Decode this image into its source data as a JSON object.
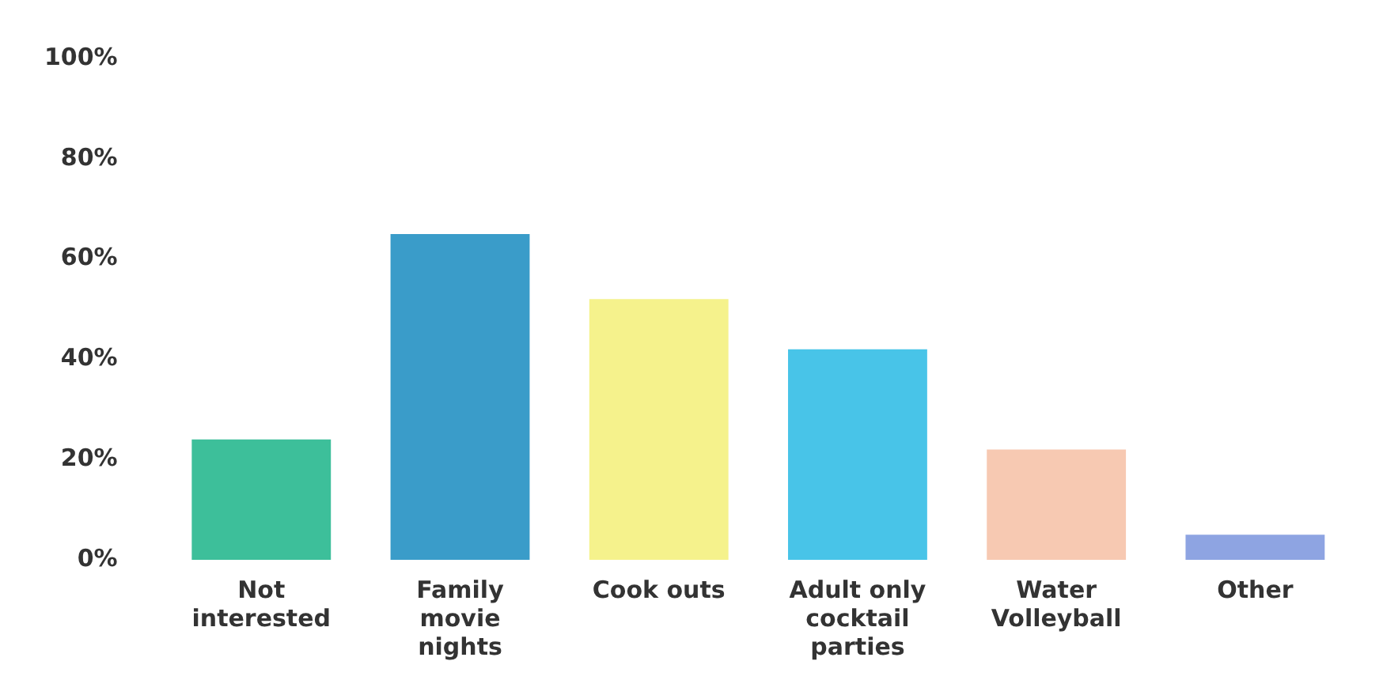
{
  "chart_data": {
    "type": "bar",
    "categories": [
      "Not interested",
      "Family movie nights",
      "Cook outs",
      "Adult only cocktail parties",
      "Water Volleyball",
      "Other"
    ],
    "values": [
      24,
      65,
      52,
      42,
      22,
      5
    ],
    "colors": [
      "#3dbf9a",
      "#3a9cc9",
      "#f5f28c",
      "#48c4e8",
      "#f7c9b2",
      "#8ea4e2"
    ],
    "ylim": [
      0,
      100
    ],
    "yticks": [
      {
        "value": 0,
        "label": "0%"
      },
      {
        "value": 20,
        "label": "20%"
      },
      {
        "value": 40,
        "label": "40%"
      },
      {
        "value": 60,
        "label": "60%"
      },
      {
        "value": 80,
        "label": "80%"
      },
      {
        "value": 100,
        "label": "100%"
      }
    ],
    "grid": false,
    "legend": false
  }
}
